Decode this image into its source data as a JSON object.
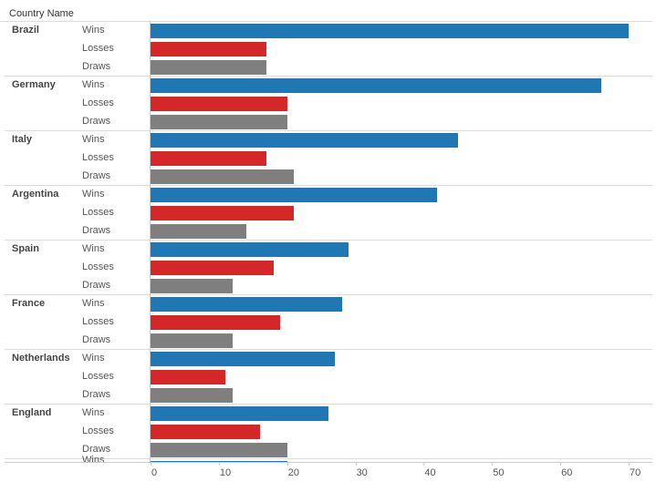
{
  "chart_data": {
    "type": "bar",
    "orientation": "horizontal",
    "row_header": "Country Name",
    "measures": [
      "Wins",
      "Losses",
      "Draws"
    ],
    "colors": {
      "Wins": "#1f77b4",
      "Losses": "#d62728",
      "Draws": "#7f7f7f"
    },
    "categories": [
      "Brazil",
      "Germany",
      "Italy",
      "Argentina",
      "Spain",
      "France",
      "Netherlands",
      "England"
    ],
    "series": [
      {
        "name": "Wins",
        "values": [
          70,
          66,
          45,
          42,
          29,
          28,
          27,
          26
        ]
      },
      {
        "name": "Losses",
        "values": [
          17,
          20,
          17,
          21,
          18,
          19,
          11,
          16
        ]
      },
      {
        "name": "Draws",
        "values": [
          17,
          20,
          21,
          14,
          12,
          12,
          12,
          20
        ]
      }
    ],
    "partial_next_row": {
      "measure": "Wins",
      "value": 20
    },
    "xlim": [
      0,
      73.5
    ],
    "xticks": [
      0,
      10,
      20,
      30,
      40,
      50,
      60,
      70
    ],
    "grid": false
  }
}
